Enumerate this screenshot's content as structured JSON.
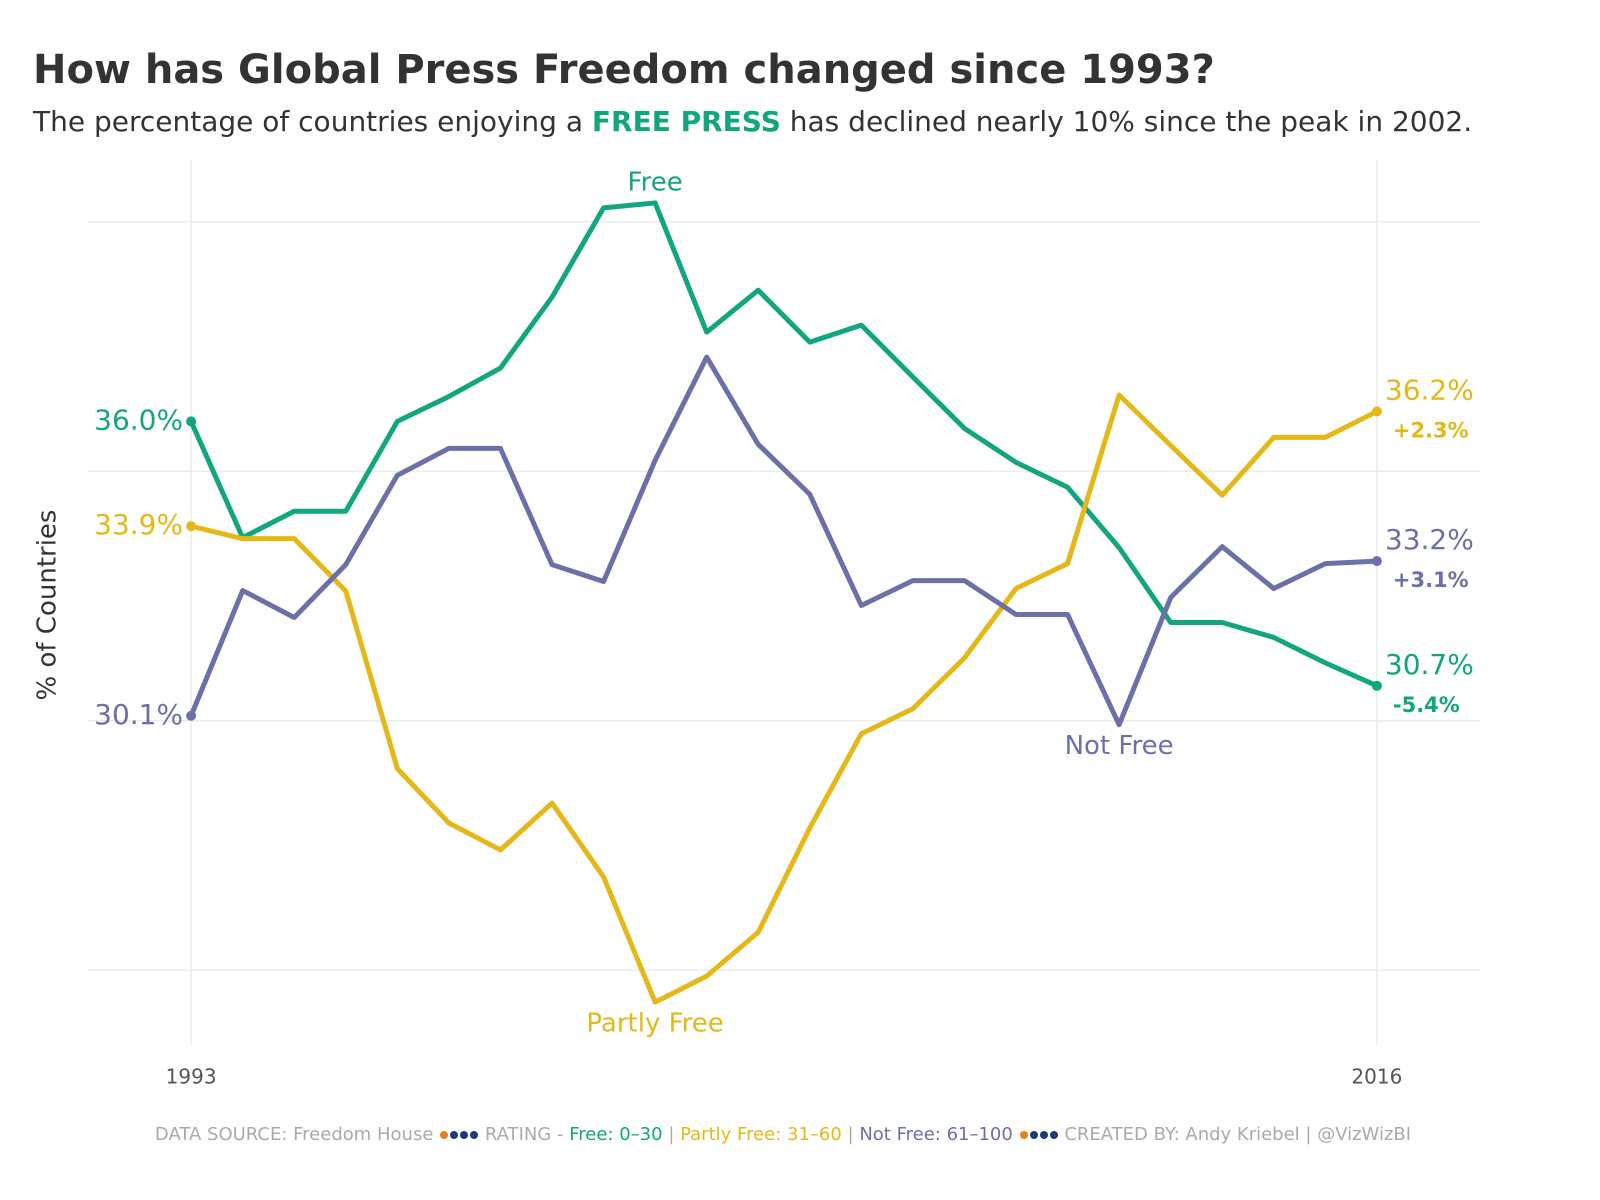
{
  "chart_data": {
    "type": "line",
    "title": "How has Global Press Freedom changed since 1993?",
    "subtitle_parts": [
      "The percentage of countries enjoying a ",
      "FREE PRESS",
      " has declined nearly 10% since the peak in 2002."
    ],
    "subtitle_highlight_color": "#12a67e",
    "y_label": "% of Countries",
    "x": [
      1993,
      1994,
      1995,
      1996,
      1997,
      1998,
      1999,
      2000,
      2001,
      2002,
      2003,
      2004,
      2005,
      2006,
      2007,
      2008,
      2009,
      2010,
      2011,
      2012,
      2013,
      2014,
      2015,
      2016
    ],
    "xlim": [
      1991,
      2018
    ],
    "xticks": [
      1993,
      2016
    ],
    "ylim": [
      23.5,
      41.0
    ],
    "yticks": [
      25,
      30,
      35,
      40
    ],
    "grid": true,
    "series": [
      {
        "name": "Free",
        "color": "#12a67e",
        "values": [
          36.0,
          33.67,
          34.2,
          34.2,
          36.0,
          36.5,
          37.07,
          38.49,
          40.28,
          40.38,
          37.79,
          38.63,
          37.59,
          37.93,
          36.89,
          35.86,
          35.18,
          34.68,
          33.47,
          31.97,
          31.97,
          31.67,
          31.16,
          30.7
        ],
        "value_labels": [
          "36.0%",
          null,
          null,
          null,
          null,
          null,
          null,
          null,
          null,
          null,
          null,
          null,
          null,
          null,
          null,
          null,
          null,
          null,
          null,
          null,
          null,
          null,
          null,
          "30.7%"
        ],
        "change_label": "-5.4%"
      },
      {
        "name": "Partly Free",
        "color": "#e6b817",
        "values": [
          33.9,
          33.65,
          33.65,
          32.6,
          29.04,
          27.95,
          27.41,
          28.35,
          26.87,
          24.36,
          24.88,
          25.76,
          27.85,
          29.74,
          30.24,
          31.26,
          32.65,
          33.15,
          36.53,
          35.52,
          34.52,
          35.68,
          35.68,
          36.2
        ],
        "value_labels": [
          "33.9%",
          null,
          null,
          null,
          null,
          null,
          null,
          null,
          null,
          null,
          null,
          null,
          null,
          null,
          null,
          null,
          null,
          null,
          null,
          null,
          null,
          null,
          null,
          "36.2%"
        ],
        "change_label": "+2.3%"
      },
      {
        "name": "Not Free",
        "color": "#6b70a8",
        "values": [
          30.1,
          32.61,
          32.07,
          33.13,
          34.92,
          35.46,
          35.46,
          33.13,
          32.79,
          35.22,
          37.29,
          35.54,
          34.54,
          32.31,
          32.81,
          32.81,
          32.13,
          32.13,
          29.92,
          32.47,
          33.49,
          32.65,
          33.15,
          33.2
        ],
        "value_labels": [
          "30.1%",
          null,
          null,
          null,
          null,
          null,
          null,
          null,
          null,
          null,
          null,
          null,
          null,
          null,
          null,
          null,
          null,
          null,
          null,
          null,
          null,
          null,
          null,
          "33.2%"
        ],
        "change_label": "+3.1%"
      }
    ],
    "footer": {
      "source": "DATA SOURCE: Freedom House",
      "rating": "RATING - ",
      "free": "Free: 0–30",
      "sep1": " | ",
      "partly": "Partly Free: 31–60",
      "sep2": " | ",
      "notfree": "Not Free: 61–100",
      "credit": "CREATED BY: Andy Kriebel | @VizWizBI"
    }
  }
}
